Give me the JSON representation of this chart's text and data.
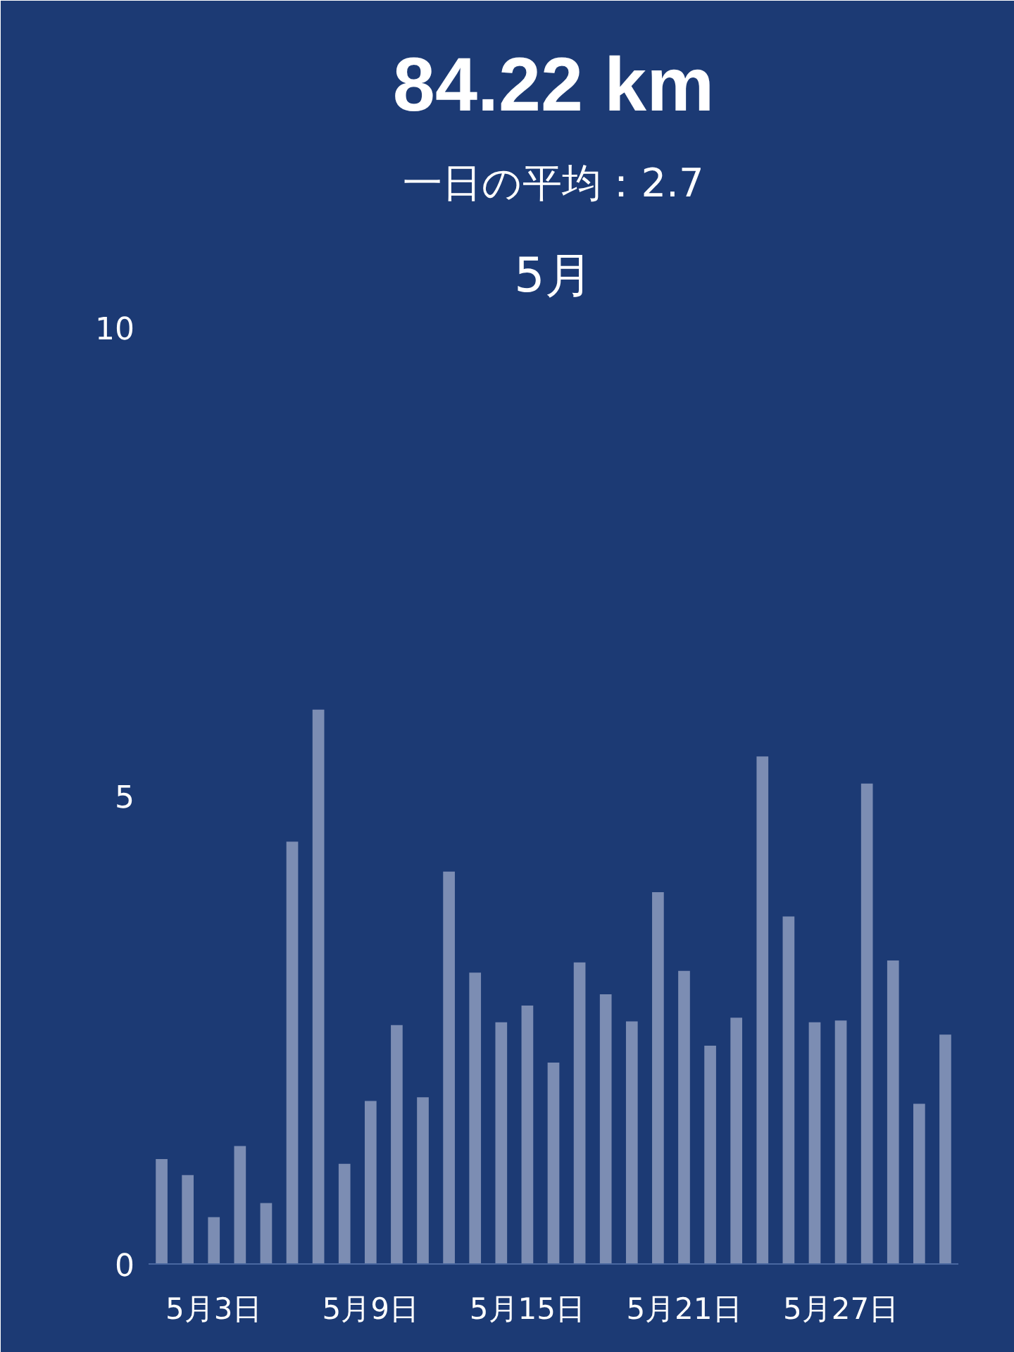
{
  "chart_data": {
    "type": "bar",
    "title": "84.22 km",
    "subtitle": "一日の平均：2.7",
    "annotations": [
      "5月"
    ],
    "categories": [
      null,
      null,
      "5月3日",
      null,
      null,
      null,
      null,
      null,
      "5月9日",
      null,
      null,
      null,
      null,
      null,
      "5月15日",
      null,
      null,
      null,
      null,
      null,
      "5月21日",
      null,
      null,
      null,
      null,
      null,
      "5月27日",
      null,
      null,
      null,
      null
    ],
    "values": [
      1.12,
      0.95,
      0.5,
      1.26,
      0.65,
      4.51,
      5.92,
      1.07,
      1.74,
      2.55,
      1.78,
      4.19,
      3.11,
      2.58,
      2.76,
      2.15,
      3.22,
      2.88,
      2.59,
      3.97,
      3.13,
      2.33,
      2.63,
      5.42,
      3.71,
      2.58,
      2.6,
      5.13,
      3.24,
      1.71,
      2.45
    ],
    "color": "#7c8db3",
    "ylim": [
      0,
      10
    ],
    "yticks": [
      0,
      5,
      10
    ]
  }
}
